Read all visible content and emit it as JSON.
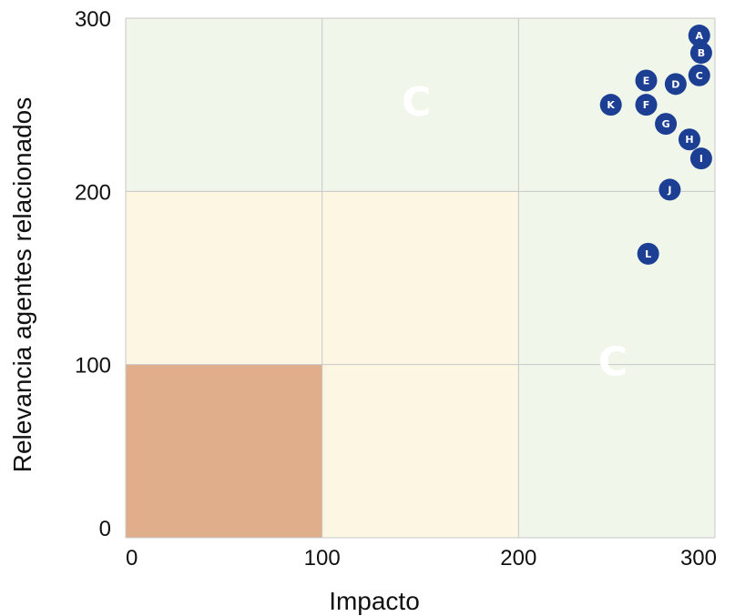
{
  "chart_data": {
    "type": "scatter",
    "xlabel": "Impacto",
    "ylabel": "Relevancia agentes relacionados",
    "xlim": [
      0,
      300
    ],
    "ylim": [
      0,
      300
    ],
    "x_ticks": [
      "0",
      "100",
      "200",
      "300"
    ],
    "y_ticks": [
      "0",
      "100",
      "200",
      "300"
    ],
    "grid": true,
    "zones": [
      {
        "x": [
          0,
          100
        ],
        "y": [
          0,
          100
        ],
        "color": "#e1ae8c"
      },
      {
        "x": [
          100,
          200
        ],
        "y": [
          0,
          100
        ],
        "color": "#fdf6e3"
      },
      {
        "x": [
          0,
          100
        ],
        "y": [
          100,
          200
        ],
        "color": "#fdf6e3"
      },
      {
        "x": [
          100,
          200
        ],
        "y": [
          100,
          200
        ],
        "color": "#fdf6e3"
      },
      {
        "x": [
          200,
          300
        ],
        "y": [
          0,
          200
        ],
        "color": "#f0f6ea"
      },
      {
        "x": [
          0,
          300
        ],
        "y": [
          200,
          300
        ],
        "color": "#f0f6ea"
      }
    ],
    "zone_labels": [
      {
        "text": "C",
        "x": 148,
        "y": 250
      },
      {
        "text": "C",
        "x": 248,
        "y": 100
      }
    ],
    "marker_color": "#1c3f94",
    "points": [
      {
        "label": "A",
        "x": 292,
        "y": 290
      },
      {
        "label": "B",
        "x": 293,
        "y": 280
      },
      {
        "label": "C",
        "x": 292,
        "y": 267
      },
      {
        "label": "D",
        "x": 280,
        "y": 262
      },
      {
        "label": "E",
        "x": 265,
        "y": 264
      },
      {
        "label": "F",
        "x": 265,
        "y": 250
      },
      {
        "label": "G",
        "x": 275,
        "y": 239
      },
      {
        "label": "H",
        "x": 287,
        "y": 230
      },
      {
        "label": "I",
        "x": 293,
        "y": 219
      },
      {
        "label": "J",
        "x": 277,
        "y": 201
      },
      {
        "label": "K",
        "x": 247,
        "y": 250
      },
      {
        "label": "L",
        "x": 266,
        "y": 164
      }
    ]
  }
}
